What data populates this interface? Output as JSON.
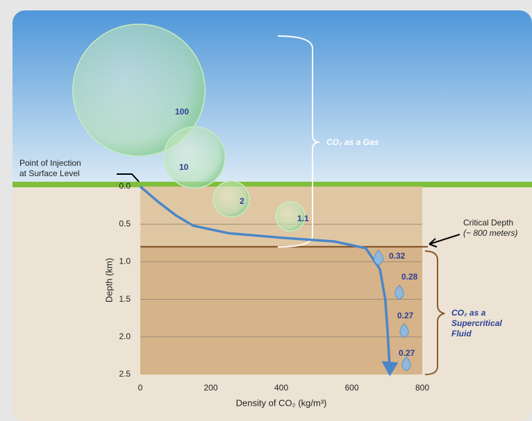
{
  "chart_data": {
    "type": "line",
    "x_label": "Density of CO₂ (kg/m³)",
    "y_label": "Depth (km)",
    "xlim": [
      0,
      800
    ],
    "xticks": [
      0,
      200,
      400,
      600,
      800
    ],
    "ylim": [
      0,
      2.5
    ],
    "yticks": [
      {
        "value": 0,
        "label": "0.0"
      },
      {
        "value": 0.5,
        "label": "0.5"
      },
      {
        "value": 1,
        "label": "1.0"
      },
      {
        "value": 1.5,
        "label": "1.5"
      },
      {
        "value": 2,
        "label": "2.0"
      },
      {
        "value": 2.5,
        "label": "2.5"
      }
    ],
    "grid": true,
    "critical_depth": 0.8,
    "series": [
      {
        "color": "#4a86c8",
        "x": [
          0,
          50,
          100,
          150,
          250,
          400,
          550,
          640,
          680,
          695,
          702,
          708
        ],
        "values": [
          0,
          0.2,
          0.38,
          0.52,
          0.62,
          0.68,
          0.73,
          0.82,
          1.1,
          1.5,
          1.95,
          2.45
        ]
      }
    ],
    "gas_volumes": [
      100,
      10,
      2,
      1.1
    ],
    "fluid_volumes": [
      0.32,
      0.28,
      0.27,
      0.27
    ],
    "annotations": {
      "injection": [
        "Point of Injection",
        "at Surface Level"
      ],
      "gas": "CO₂ as a Gas",
      "critical": [
        "Critical Depth",
        "(~ 800 meters)"
      ],
      "fluid": [
        "CO₂ as a",
        "Supercritical",
        "Fluid"
      ]
    }
  }
}
